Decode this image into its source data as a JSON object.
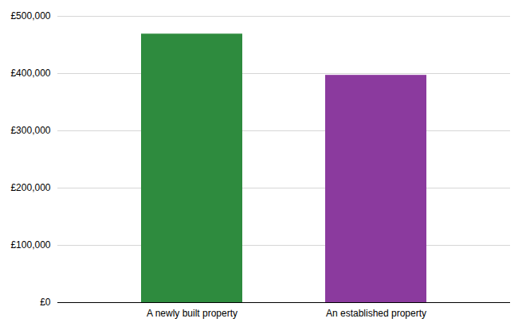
{
  "chart_data": {
    "type": "bar",
    "categories": [
      "A newly built property",
      "An established property"
    ],
    "values": [
      469000,
      397000
    ],
    "colors": [
      "#2e8b3e",
      "#8b3a9e"
    ],
    "ylim": [
      0,
      500000
    ],
    "yticks": [
      {
        "value": 0,
        "label": "£0"
      },
      {
        "value": 100000,
        "label": "£100,000"
      },
      {
        "value": 200000,
        "label": "£200,000"
      },
      {
        "value": 300000,
        "label": "£300,000"
      },
      {
        "value": 400000,
        "label": "£400,000"
      },
      {
        "value": 500000,
        "label": "£500,000"
      }
    ],
    "grid": true
  }
}
